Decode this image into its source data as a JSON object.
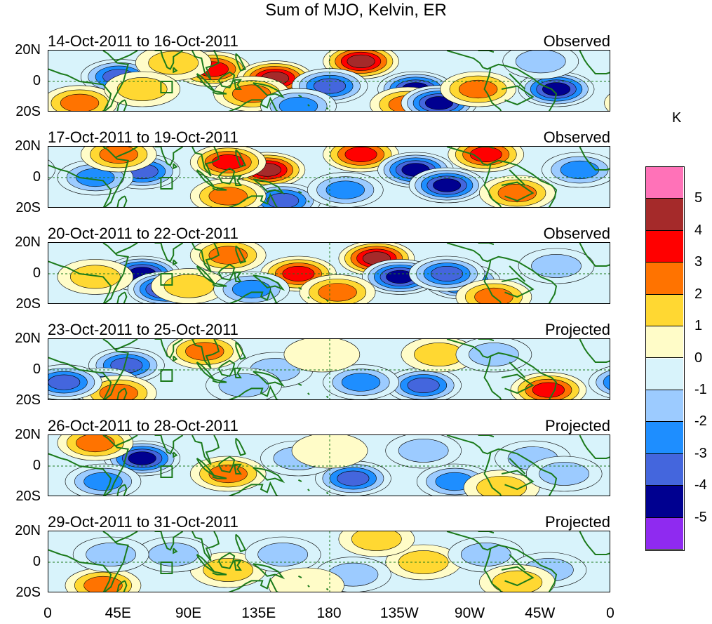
{
  "title": "Sum of MJO, Kelvin, ER",
  "colors": {
    "levels": [
      "#8f2af0",
      "#000090",
      "#4466dd",
      "#1e8eff",
      "#9ccbff",
      "#d8f3fb",
      "#fffcc8",
      "#ffd832",
      "#ff7300",
      "#ff0000",
      "#a52a2a",
      "#ff72b8"
    ],
    "coast": "#1b7a1b"
  },
  "chart_data": {
    "type": "heatmap",
    "title": "Sum of MJO, Kelvin, ER",
    "unit": "K",
    "x_ticks": [
      "0",
      "45E",
      "90E",
      "135E",
      "180",
      "135W",
      "90W",
      "45W",
      "0"
    ],
    "y_ticks": [
      "20N",
      "0",
      "20S"
    ],
    "colorbar_labels": [
      "5",
      "4",
      "3",
      "2",
      "1",
      "0",
      "-1",
      "-2",
      "-3",
      "-4",
      "-5"
    ],
    "panels": [
      {
        "dates": "14-Oct-2011 to 16-Oct-2011",
        "status": "Observed",
        "blobs": [
          [
            105,
            8,
            3.5
          ],
          [
            145,
            2,
            4.5
          ],
          [
            200,
            13,
            5
          ],
          [
            130,
            -8,
            3
          ],
          [
            180,
            -3,
            -4
          ],
          [
            235,
            -5,
            -5
          ],
          [
            230,
            -15,
            3
          ],
          [
            250,
            -14,
            -5
          ],
          [
            45,
            3,
            -4
          ],
          [
            325,
            -5,
            -5
          ],
          [
            275,
            -5,
            3
          ],
          [
            315,
            13,
            -2
          ],
          [
            20,
            -14,
            3
          ],
          [
            160,
            -16,
            -3
          ],
          [
            80,
            12,
            2
          ],
          [
            60,
            -5,
            2
          ]
        ]
      },
      {
        "dates": "17-Oct-2011 to 19-Oct-2011",
        "status": "Observed",
        "blobs": [
          [
            140,
            5,
            5
          ],
          [
            115,
            10,
            4
          ],
          [
            200,
            15,
            4
          ],
          [
            280,
            15,
            4
          ],
          [
            235,
            5,
            -5
          ],
          [
            255,
            -5,
            -5
          ],
          [
            60,
            4,
            -4
          ],
          [
            30,
            0,
            -3
          ],
          [
            150,
            -15,
            -4
          ],
          [
            300,
            -10,
            3
          ],
          [
            115,
            -12,
            3
          ],
          [
            340,
            5,
            -3
          ],
          [
            45,
            15,
            3
          ],
          [
            190,
            -8,
            -3
          ]
        ]
      },
      {
        "dates": "20-Oct-2011 to 22-Oct-2011",
        "status": "Observed",
        "blobs": [
          [
            210,
            10,
            5
          ],
          [
            160,
            0,
            4
          ],
          [
            115,
            12,
            3
          ],
          [
            60,
            0,
            -5
          ],
          [
            75,
            -10,
            -5
          ],
          [
            225,
            -2,
            -5
          ],
          [
            265,
            -5,
            -5
          ],
          [
            255,
            0,
            -4
          ],
          [
            185,
            -12,
            3
          ],
          [
            285,
            -15,
            3
          ],
          [
            90,
            -8,
            2
          ],
          [
            130,
            -10,
            -3
          ],
          [
            30,
            -2,
            2
          ],
          [
            325,
            5,
            -2
          ]
        ]
      },
      {
        "dates": "23-Oct-2011 to 25-Oct-2011",
        "status": "Projected",
        "blobs": [
          [
            100,
            12,
            3
          ],
          [
            50,
            3,
            -4
          ],
          [
            35,
            -10,
            -3
          ],
          [
            45,
            -15,
            3
          ],
          [
            10,
            -8,
            -4
          ],
          [
            240,
            -10,
            -4
          ],
          [
            250,
            10,
            2
          ],
          [
            320,
            -13,
            4
          ],
          [
            200,
            -8,
            -3
          ],
          [
            145,
            0,
            -2
          ],
          [
            285,
            10,
            -2
          ],
          [
            125,
            -10,
            -2
          ],
          [
            175,
            10,
            1
          ]
        ]
      },
      {
        "dates": "26-Oct-2011 to 28-Oct-2011",
        "status": "Projected",
        "blobs": [
          [
            60,
            5,
            -5
          ],
          [
            115,
            -5,
            3
          ],
          [
            195,
            -8,
            -4
          ],
          [
            35,
            -10,
            -3
          ],
          [
            260,
            -10,
            -3
          ],
          [
            290,
            -14,
            2
          ],
          [
            310,
            5,
            -2
          ],
          [
            240,
            10,
            -2
          ],
          [
            30,
            15,
            3
          ],
          [
            160,
            5,
            -2
          ],
          [
            330,
            -5,
            -2
          ],
          [
            180,
            10,
            1
          ]
        ]
      },
      {
        "dates": "29-Oct-2011 to 31-Oct-2011",
        "status": "Projected",
        "blobs": [
          [
            35,
            -15,
            3
          ],
          [
            115,
            -5,
            2
          ],
          [
            240,
            0,
            2
          ],
          [
            210,
            15,
            2
          ],
          [
            280,
            5,
            -2
          ],
          [
            80,
            5,
            -2
          ],
          [
            150,
            5,
            -2
          ],
          [
            195,
            -8,
            -2
          ],
          [
            320,
            -5,
            -2
          ],
          [
            300,
            -13,
            2
          ],
          [
            40,
            5,
            -2
          ],
          [
            165,
            -15,
            1
          ]
        ]
      }
    ]
  }
}
